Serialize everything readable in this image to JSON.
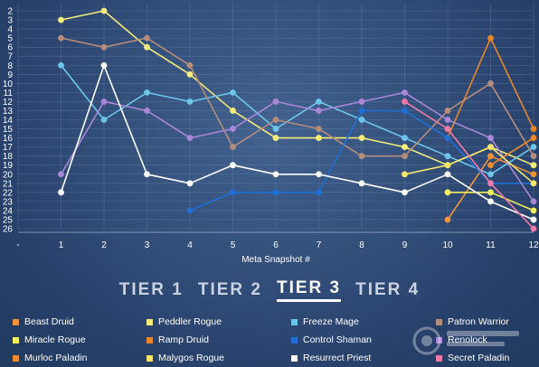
{
  "chart_data": {
    "type": "line",
    "title": "",
    "xlabel": "Meta Snapshot #",
    "ylabel": "",
    "x_tick_labels": [
      "-",
      "1",
      "2",
      "3",
      "4",
      "5",
      "6",
      "7",
      "8",
      "9",
      "10",
      "11",
      "12"
    ],
    "y_tick_labels": [
      "2",
      "3",
      "4",
      "5",
      "6",
      "7",
      "8",
      "9",
      "10",
      "11",
      "12",
      "13",
      "14",
      "15",
      "16",
      "17",
      "18",
      "19",
      "20",
      "21",
      "22",
      "23",
      "24",
      "25",
      "26"
    ],
    "xlim": [
      0,
      12
    ],
    "ylim": [
      2,
      26
    ],
    "y_inverted": true,
    "grid": true,
    "series": [
      {
        "name": "Beast Druid",
        "color": "#f0923a",
        "x": [
          10,
          11,
          12
        ],
        "values": [
          25,
          18,
          20
        ]
      },
      {
        "name": "Peddler Rogue",
        "color": "#f5ec7a",
        "x": [
          1,
          2,
          3,
          4,
          5,
          6,
          7,
          8,
          9,
          10,
          11,
          12
        ],
        "values": [
          3,
          2,
          6,
          9,
          13,
          16,
          16,
          16,
          17,
          19,
          17,
          19
        ]
      },
      {
        "name": "Freeze Mage",
        "color": "#6cc6ea",
        "x": [
          1,
          2,
          3,
          4,
          5,
          6,
          7,
          8,
          9,
          10,
          11,
          12
        ],
        "values": [
          8,
          14,
          11,
          12,
          11,
          15,
          12,
          14,
          16,
          18,
          20,
          17
        ]
      },
      {
        "name": "Patron Warrior",
        "color": "#b58d7c",
        "x": [
          1,
          2,
          3,
          4,
          5,
          6,
          7,
          8,
          9,
          10,
          11,
          12
        ],
        "values": [
          5,
          6,
          5,
          8,
          17,
          14,
          15,
          18,
          18,
          13,
          10,
          18
        ]
      },
      {
        "name": "Miracle Rogue",
        "color": "#f4ef5c",
        "x": [
          10,
          11,
          12
        ],
        "values": [
          22,
          22,
          24
        ]
      },
      {
        "name": "Ramp Druid",
        "color": "#e8862c",
        "x": [
          10,
          11,
          12
        ],
        "values": [
          16,
          5,
          15
        ]
      },
      {
        "name": "Control Shaman",
        "color": "#1f6fd6",
        "x": [
          4,
          5,
          6,
          7,
          8,
          9,
          10,
          11,
          12
        ],
        "values": [
          24,
          22,
          22,
          22,
          13,
          13,
          16,
          21,
          21
        ]
      },
      {
        "name": "Renolock",
        "color": "#a987d8",
        "x": [
          1,
          2,
          3,
          4,
          5,
          6,
          7,
          8,
          9,
          10,
          11,
          12
        ],
        "values": [
          20,
          12,
          13,
          16,
          15,
          12,
          13,
          12,
          11,
          14,
          16,
          23
        ]
      },
      {
        "name": "Murloc Paladin",
        "color": "#ee8a2c",
        "x": [
          11,
          12
        ],
        "values": [
          19,
          16
        ]
      },
      {
        "name": "Malygos Rogue",
        "color": "#f5e46a",
        "x": [
          9,
          10,
          11,
          12
        ],
        "values": [
          20,
          19,
          17,
          21
        ]
      },
      {
        "name": "Resurrect Priest",
        "color": "#ffffff",
        "x": [
          1,
          2,
          3,
          4,
          5,
          6,
          7,
          8,
          9,
          10,
          11,
          12
        ],
        "values": [
          22,
          8,
          20,
          21,
          19,
          20,
          20,
          21,
          22,
          20,
          23,
          25
        ]
      },
      {
        "name": "Secret Paladin",
        "color": "#f07aa8",
        "x": [
          9,
          10,
          11,
          12
        ],
        "values": [
          12,
          15,
          21,
          26
        ]
      }
    ]
  },
  "tiers": [
    {
      "label": "TIER 1",
      "active": false
    },
    {
      "label": "TIER 2",
      "active": false
    },
    {
      "label": "TIER 3",
      "active": true
    },
    {
      "label": "TIER 4",
      "active": false
    }
  ],
  "legend": [
    {
      "label": "Beast Druid",
      "color": "#f0923a"
    },
    {
      "label": "Peddler Rogue",
      "color": "#f5ec7a"
    },
    {
      "label": "Freeze Mage",
      "color": "#6cc6ea"
    },
    {
      "label": "Patron Warrior",
      "color": "#b58d7c"
    },
    {
      "label": "Miracle Rogue",
      "color": "#f4ef5c"
    },
    {
      "label": "Ramp Druid",
      "color": "#e8862c"
    },
    {
      "label": "Control Shaman",
      "color": "#1f6fd6"
    },
    {
      "label": "Renolock",
      "color": "#a987d8"
    },
    {
      "label": "Murloc Paladin",
      "color": "#ee8a2c"
    },
    {
      "label": "Malygos Rogue",
      "color": "#f5e46a"
    },
    {
      "label": "Resurrect Priest",
      "color": "#ffffff"
    },
    {
      "label": "Secret Paladin",
      "color": "#f07aa8"
    }
  ],
  "colors": {
    "background": "#2b4166",
    "grid": "#6d83a8",
    "text": "#ffffff"
  }
}
